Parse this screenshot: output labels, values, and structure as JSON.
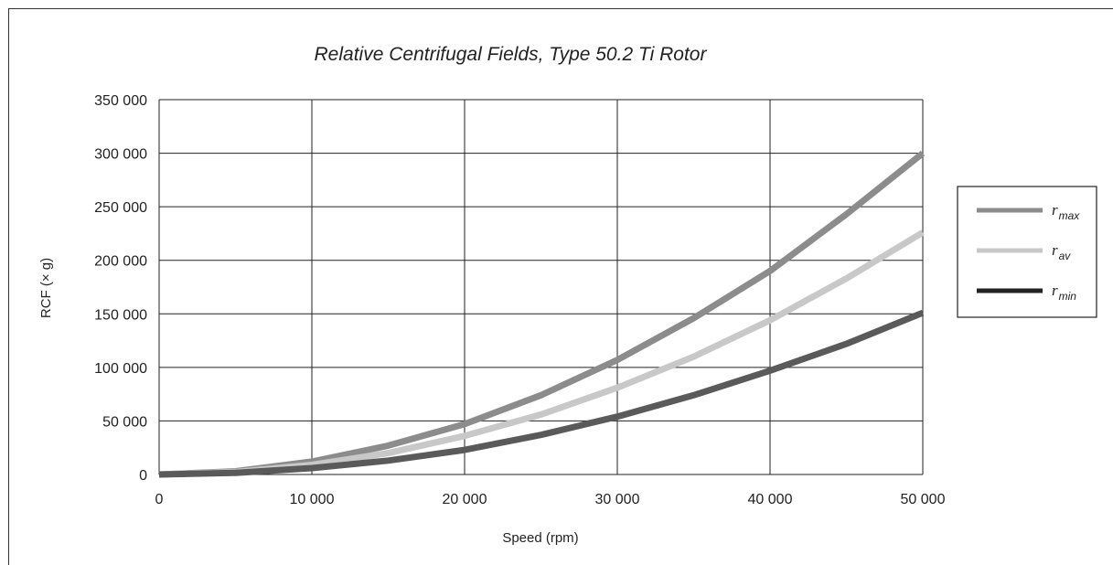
{
  "chart_data": {
    "type": "line",
    "title": "Relative Centrifugal Fields, Type 50.2 Ti Rotor",
    "xlabel": "Speed (rpm)",
    "ylabel": "RCF (× g)",
    "xlim": [
      0,
      50000
    ],
    "ylim": [
      0,
      350000
    ],
    "x_ticks": [
      "0",
      "10 000",
      "20 000",
      "30 000",
      "40 000",
      "50 000"
    ],
    "y_ticks": [
      "0",
      "50 000",
      "100 000",
      "150 000",
      "200 000",
      "250 000",
      "300 000",
      "350 000"
    ],
    "grid": true,
    "legend_position": "right",
    "x": [
      0,
      5000,
      10000,
      15000,
      20000,
      25000,
      30000,
      35000,
      40000,
      45000,
      50000
    ],
    "series": [
      {
        "name": "r_max",
        "legend_letter": "r",
        "legend_sub": "max",
        "color": "#8c8c8c",
        "values": [
          0,
          3000,
          12000,
          27000,
          47000,
          74000,
          107000,
          146000,
          190000,
          243000,
          300000
        ]
      },
      {
        "name": "r_av",
        "legend_letter": "r",
        "legend_sub": "av",
        "color": "#c8c8c8",
        "values": [
          0,
          2300,
          9000,
          20000,
          36000,
          56000,
          81000,
          110000,
          144000,
          183000,
          226000
        ]
      },
      {
        "name": "r_min",
        "legend_letter": "r",
        "legend_sub": "min",
        "color": "#5a5a5a",
        "legend_color": "#222222",
        "values": [
          0,
          1500,
          6000,
          13000,
          23000,
          37000,
          54000,
          74000,
          97000,
          122000,
          151000
        ]
      }
    ]
  }
}
